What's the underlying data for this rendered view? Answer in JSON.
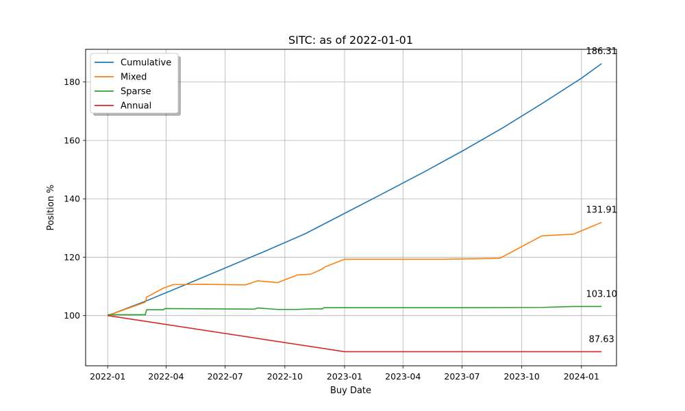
{
  "chart_data": {
    "type": "line",
    "title": "SITC: as of 2022-01-01",
    "xlabel": "Buy Date",
    "ylabel": "Position %",
    "xlim": [
      "2021-11-28",
      "2024-02-24"
    ],
    "ylim": [
      82.8,
      191.2
    ],
    "x_ticks": [
      {
        "date": "2022-01-01",
        "label": "2022-01"
      },
      {
        "date": "2022-04-01",
        "label": "2022-04"
      },
      {
        "date": "2022-07-01",
        "label": "2022-07"
      },
      {
        "date": "2022-10-01",
        "label": "2022-10"
      },
      {
        "date": "2023-01-01",
        "label": "2023-01"
      },
      {
        "date": "2023-04-01",
        "label": "2023-04"
      },
      {
        "date": "2023-07-01",
        "label": "2023-07"
      },
      {
        "date": "2023-10-01",
        "label": "2023-10"
      },
      {
        "date": "2024-01-01",
        "label": "2024-01"
      }
    ],
    "y_ticks": [
      100,
      120,
      140,
      160,
      180
    ],
    "grid": true,
    "legend_position": "upper-left",
    "series": [
      {
        "name": "Cumulative",
        "color": "#1f77b4",
        "end_label": "186.31",
        "points": [
          [
            "2022-01-01",
            100.0
          ],
          [
            "2022-03-01",
            105.0
          ],
          [
            "2022-05-01",
            110.6
          ],
          [
            "2022-07-01",
            116.3
          ],
          [
            "2022-09-01",
            122.1
          ],
          [
            "2022-11-01",
            128.0
          ],
          [
            "2023-01-01",
            135.0
          ],
          [
            "2023-03-01",
            141.8
          ],
          [
            "2023-05-01",
            148.9
          ],
          [
            "2023-07-01",
            156.3
          ],
          [
            "2023-09-01",
            164.2
          ],
          [
            "2023-11-01",
            172.6
          ],
          [
            "2024-01-01",
            181.3
          ],
          [
            "2024-02-01",
            186.31
          ]
        ]
      },
      {
        "name": "Mixed",
        "color": "#ff7f0e",
        "end_label": "131.91",
        "points": [
          [
            "2022-01-01",
            100.0
          ],
          [
            "2022-02-28",
            104.6
          ],
          [
            "2022-03-02",
            106.3
          ],
          [
            "2022-03-28",
            109.4
          ],
          [
            "2022-04-12",
            110.6
          ],
          [
            "2022-06-01",
            110.7
          ],
          [
            "2022-08-01",
            110.5
          ],
          [
            "2022-08-20",
            111.9
          ],
          [
            "2022-09-20",
            111.3
          ],
          [
            "2022-10-20",
            113.9
          ],
          [
            "2022-11-10",
            114.2
          ],
          [
            "2022-11-28",
            116.0
          ],
          [
            "2022-12-01",
            116.6
          ],
          [
            "2023-01-01",
            119.3
          ],
          [
            "2023-06-01",
            119.3
          ],
          [
            "2023-08-28",
            119.6
          ],
          [
            "2023-11-01",
            127.3
          ],
          [
            "2023-12-20",
            127.9
          ],
          [
            "2024-02-01",
            131.91
          ]
        ]
      },
      {
        "name": "Sparse",
        "color": "#2ca02c",
        "end_label": "103.10",
        "points": [
          [
            "2022-01-01",
            100.3
          ],
          [
            "2022-02-28",
            100.3
          ],
          [
            "2022-03-02",
            102.0
          ],
          [
            "2022-03-28",
            102.0
          ],
          [
            "2022-03-30",
            102.4
          ],
          [
            "2022-08-15",
            102.2
          ],
          [
            "2022-08-20",
            102.6
          ],
          [
            "2022-09-20",
            102.1
          ],
          [
            "2022-10-20",
            102.1
          ],
          [
            "2022-11-10",
            102.3
          ],
          [
            "2022-11-28",
            102.3
          ],
          [
            "2022-11-30",
            102.7
          ],
          [
            "2023-07-01",
            102.7
          ],
          [
            "2023-11-01",
            102.8
          ],
          [
            "2023-12-20",
            103.1
          ],
          [
            "2024-02-01",
            103.1
          ]
        ]
      },
      {
        "name": "Annual",
        "color": "#d62728",
        "end_label": "87.63",
        "points": [
          [
            "2022-01-01",
            100.0
          ],
          [
            "2023-01-01",
            87.63
          ],
          [
            "2024-02-01",
            87.63
          ]
        ]
      }
    ]
  }
}
